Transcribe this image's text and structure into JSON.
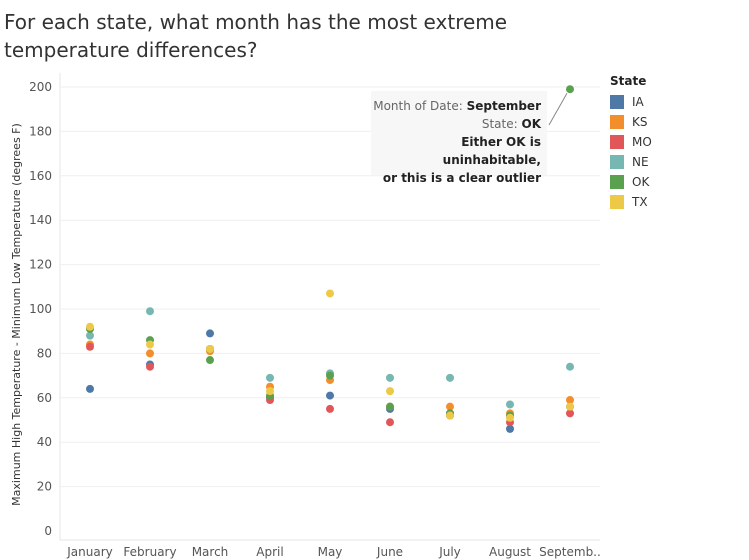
{
  "title": "For each state, what month has the most extreme temperature differences?",
  "colors": {
    "IA": "#4e79a7",
    "KS": "#f28e2b",
    "MO": "#e15759",
    "NE": "#76b7b2",
    "OK": "#59a14f",
    "TX": "#edc948"
  },
  "tooltip": {
    "line1_key": "Month of Date:",
    "line1_value": "September",
    "line2_key": "State:",
    "line2_value": "OK",
    "note_line1": "Either OK is uninhabitable,",
    "note_line2": "or this is a clear outlier"
  },
  "chart_data": {
    "type": "scatter",
    "title": "For each state, what month has the most extreme temperature differences?",
    "ylabel": "Maximum High Temperature - Minimum Low Temperature (degrees F)",
    "xlabel": "",
    "categories": [
      "January",
      "February",
      "March",
      "April",
      "May",
      "June",
      "July",
      "August",
      "Septemb.."
    ],
    "ylim": [
      0,
      205
    ],
    "yticks": [
      0,
      20,
      40,
      60,
      80,
      100,
      120,
      140,
      160,
      180,
      200
    ],
    "grid": true,
    "legend_title": "State",
    "legend_position": "right",
    "series": [
      {
        "name": "IA",
        "values": [
          64,
          75,
          89,
          60,
          61,
          55,
          52,
          46,
          56
        ]
      },
      {
        "name": "KS",
        "values": [
          84,
          80,
          81,
          65,
          68,
          56,
          56,
          53,
          59
        ]
      },
      {
        "name": "MO",
        "values": [
          83,
          74,
          82,
          59,
          55,
          49,
          53,
          49,
          53
        ]
      },
      {
        "name": "NE",
        "values": [
          88,
          99,
          82,
          69,
          71,
          69,
          69,
          57,
          74
        ]
      },
      {
        "name": "OK",
        "values": [
          91,
          86,
          77,
          61,
          70,
          56,
          53,
          52,
          199
        ]
      },
      {
        "name": "TX",
        "values": [
          92,
          84,
          82,
          63,
          107,
          63,
          52,
          51,
          56
        ]
      }
    ]
  }
}
